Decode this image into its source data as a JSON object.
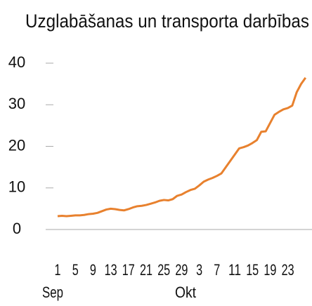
{
  "chart_data": {
    "type": "line",
    "title": "Uzglabāšanas un transporta darbības",
    "categories": [
      "1",
      null,
      null,
      null,
      "5",
      null,
      null,
      null,
      "9",
      null,
      null,
      null,
      "13",
      null,
      null,
      null,
      "17",
      null,
      null,
      null,
      "21",
      null,
      null,
      null,
      "25",
      null,
      null,
      null,
      "29",
      null,
      null,
      null,
      "3",
      null,
      null,
      null,
      "7",
      null,
      null,
      null,
      "11",
      null,
      null,
      null,
      "15",
      null,
      null,
      null,
      "19",
      null,
      null,
      null,
      "23",
      null,
      null,
      null,
      null
    ],
    "month_labels": [
      {
        "label": "Sep",
        "index": 0
      },
      {
        "label": "Okt",
        "index": 30
      }
    ],
    "series": [
      {
        "name": "Uzglabāšanas un transporta darbības",
        "color": "#e8812e",
        "values": [
          3.2,
          3.3,
          3.2,
          3.3,
          3.4,
          3.4,
          3.5,
          3.7,
          3.8,
          4.0,
          4.4,
          4.8,
          5.0,
          4.9,
          4.7,
          4.6,
          4.9,
          5.3,
          5.6,
          5.7,
          5.9,
          6.2,
          6.5,
          6.9,
          7.1,
          7.0,
          7.3,
          8.1,
          8.4,
          9.0,
          9.5,
          9.8,
          10.6,
          11.5,
          12.0,
          12.4,
          12.9,
          13.5,
          15.0,
          16.5,
          18.0,
          19.5,
          19.8,
          20.2,
          20.8,
          21.5,
          23.5,
          23.6,
          25.6,
          27.6,
          28.3,
          28.9,
          29.2,
          29.8,
          33.0,
          35.0,
          36.5
        ]
      }
    ],
    "ylim": [
      0,
      40
    ],
    "yticks": [
      0,
      10,
      20,
      30,
      40
    ]
  }
}
